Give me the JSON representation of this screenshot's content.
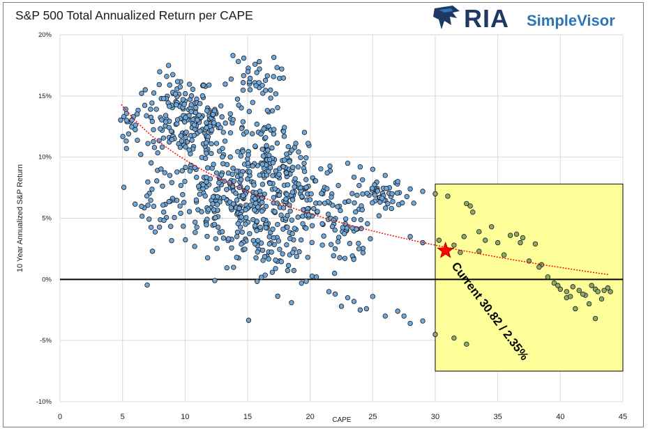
{
  "chart_data": {
    "type": "scatter",
    "title": "S&P 500 Total Annualized Return per CAPE",
    "xlabel": "CAPE",
    "ylabel": "10 Year Annualized S&P Return",
    "xlim": [
      0,
      45
    ],
    "ylim": [
      -10,
      20
    ],
    "x_ticks": [
      "0",
      "5",
      "10",
      "15",
      "20",
      "25",
      "30",
      "35",
      "40",
      "45"
    ],
    "y_ticks": [
      "-10%",
      "-5%",
      "0%",
      "5%",
      "10%",
      "15%",
      "20%"
    ],
    "y_tick_values": [
      -10,
      -5,
      0,
      5,
      10,
      15,
      20
    ],
    "x_tick_values": [
      0,
      5,
      10,
      15,
      20,
      25,
      30,
      35,
      40,
      45
    ],
    "grid": true,
    "zero_line": true,
    "highlight_region": {
      "x": [
        30,
        45
      ],
      "y": [
        -7.5,
        7.8
      ],
      "color": "#ffff99"
    },
    "current_point": {
      "x": 30.82,
      "y": 2.35,
      "marker": "star",
      "color": "#ff0000"
    },
    "annotation": "Current  30.82 / 2.35%",
    "trend": {
      "type": "log-fit",
      "color": "#ff0000",
      "x_range": [
        4.9,
        44
      ],
      "a": 24.4,
      "b": -6.35
    },
    "colors": {
      "point_fill": "#6fa8dc",
      "point_fill_region": "#8ea86a",
      "point_edge": "#1a1a1a",
      "grid": "#d9d9d9",
      "region_edge": "#000000"
    },
    "clusters": [
      {
        "cx": 5.5,
        "cy": 12.8,
        "sx": 0.6,
        "sy": 0.8,
        "n": 22
      },
      {
        "cx": 9.5,
        "cy": 13.5,
        "sx": 1.3,
        "sy": 1.6,
        "n": 120
      },
      {
        "cx": 12.0,
        "cy": 12.5,
        "sx": 1.5,
        "sy": 1.5,
        "n": 90
      },
      {
        "cx": 8.0,
        "cy": 7.0,
        "sx": 1.0,
        "sy": 2.2,
        "n": 45
      },
      {
        "cx": 12.5,
        "cy": 6.5,
        "sx": 1.8,
        "sy": 1.8,
        "n": 140
      },
      {
        "cx": 16.0,
        "cy": 5.5,
        "sx": 1.6,
        "sy": 2.2,
        "n": 170
      },
      {
        "cx": 19.0,
        "cy": 7.0,
        "sx": 1.6,
        "sy": 2.2,
        "n": 110
      },
      {
        "cx": 16.5,
        "cy": 11.0,
        "sx": 1.4,
        "sy": 1.3,
        "n": 60
      },
      {
        "cx": 15.5,
        "cy": 16.0,
        "sx": 1.0,
        "sy": 1.2,
        "n": 40
      },
      {
        "cx": 22.5,
        "cy": 4.5,
        "sx": 1.2,
        "sy": 1.8,
        "n": 70
      },
      {
        "cx": 26.0,
        "cy": 6.8,
        "sx": 1.0,
        "sy": 0.6,
        "n": 45
      },
      {
        "cx": 18.0,
        "cy": 1.5,
        "sx": 1.0,
        "sy": 1.3,
        "n": 25
      }
    ],
    "scatter_points": [
      [
        22,
        -1.2
      ],
      [
        22.5,
        -2.2
      ],
      [
        23,
        -1.5
      ],
      [
        24,
        -2.5
      ],
      [
        25,
        -1.4
      ],
      [
        26,
        -3.0
      ],
      [
        27,
        -2.6
      ],
      [
        28,
        -3.6
      ],
      [
        29,
        -3.4
      ],
      [
        30,
        -4.5
      ],
      [
        21.5,
        -1.0
      ],
      [
        23.5,
        -1.8
      ],
      [
        20.5,
        0.2
      ],
      [
        24.5,
        -2.4
      ],
      [
        27.5,
        -3.0
      ],
      [
        22,
        2.5
      ],
      [
        28,
        3.5
      ],
      [
        29,
        3.0
      ],
      [
        30,
        7.0
      ],
      [
        29,
        7.2
      ],
      [
        28,
        7.4
      ],
      [
        27,
        8.0
      ],
      [
        26,
        8.5
      ],
      [
        25,
        9.0
      ],
      [
        24,
        9.2
      ],
      [
        23,
        9.5
      ],
      [
        26.5,
        5.8
      ],
      [
        25.5,
        5.2
      ],
      [
        30.3,
        3.2
      ],
      [
        31.0,
        6.8
      ],
      [
        31.5,
        2.8
      ],
      [
        32.0,
        2.2
      ],
      [
        32.5,
        6.2
      ],
      [
        32.8,
        6.0
      ],
      [
        33.0,
        5.5
      ],
      [
        32.3,
        3.5
      ],
      [
        33.5,
        3.9
      ],
      [
        34.0,
        3.2
      ],
      [
        34.5,
        4.3
      ],
      [
        35.0,
        3.0
      ],
      [
        35.5,
        2.0
      ],
      [
        36.0,
        3.6
      ],
      [
        36.5,
        3.7
      ],
      [
        37.0,
        3.4
      ],
      [
        37.5,
        1.5
      ],
      [
        38.0,
        2.9
      ],
      [
        38.5,
        1.2
      ],
      [
        39.0,
        0.2
      ],
      [
        39.5,
        -0.3
      ],
      [
        40.0,
        -0.8
      ],
      [
        40.5,
        -1.5
      ],
      [
        41.0,
        -0.6
      ],
      [
        41.5,
        -0.9
      ],
      [
        42.0,
        -1.3
      ],
      [
        42.5,
        -0.5
      ],
      [
        42.8,
        -0.8
      ],
      [
        43.0,
        -1.0
      ],
      [
        43.5,
        -0.9
      ],
      [
        44.0,
        -1.0
      ],
      [
        43.3,
        -1.6
      ],
      [
        42.3,
        -2.0
      ],
      [
        41.2,
        -2.4
      ],
      [
        42.8,
        -3.2
      ],
      [
        40.5,
        -1.0
      ],
      [
        33.5,
        2.3
      ],
      [
        31.5,
        -4.8
      ],
      [
        32.5,
        -5.3
      ],
      [
        36.8,
        3.0
      ],
      [
        38.3,
        1.0
      ],
      [
        39.8,
        -0.5
      ],
      [
        41.8,
        -1.2
      ],
      [
        43.8,
        -0.7
      ],
      [
        40.8,
        -1.4
      ]
    ]
  }
}
